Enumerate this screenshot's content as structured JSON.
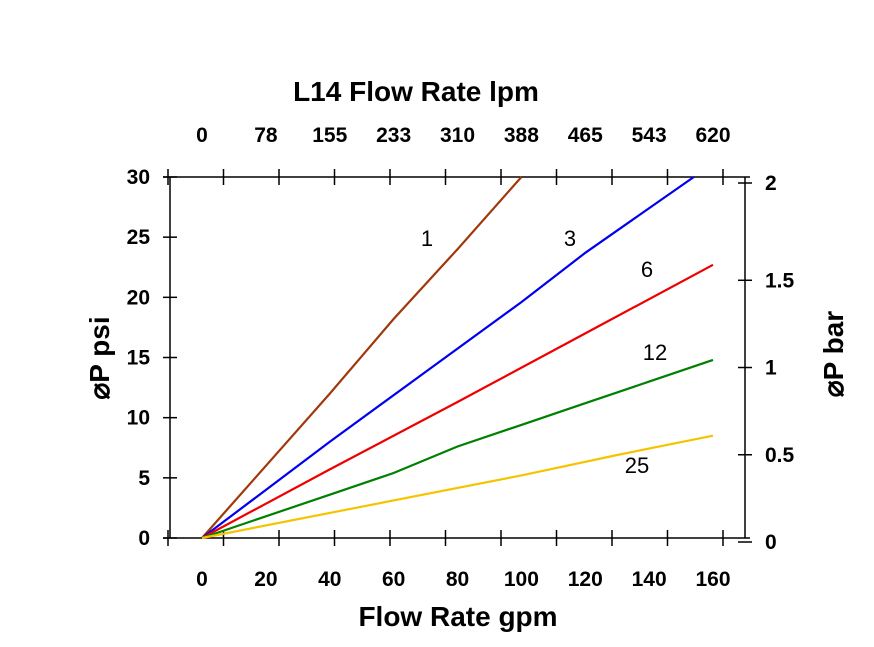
{
  "chart_data": {
    "type": "line",
    "title": "L14  Flow Rate lpm",
    "xlabel": "Flow Rate gpm",
    "ylabel": "⌀P psi",
    "y2label": "⌀P bar",
    "xlim": [
      0,
      160
    ],
    "ylim": [
      0,
      30
    ],
    "y2lim": [
      0,
      2
    ],
    "grid": false,
    "x_ticks": [
      "0",
      "20",
      "40",
      "60",
      "80",
      "100",
      "120",
      "140",
      "160"
    ],
    "x_top_ticks": [
      "0",
      "78",
      "155",
      "233",
      "310",
      "388",
      "465",
      "543",
      "620"
    ],
    "y_ticks": [
      "0",
      "5",
      "10",
      "15",
      "20",
      "25",
      "30"
    ],
    "y2_ticks": [
      {
        "label": "0",
        "value": 0
      },
      {
        "label": "0.5",
        "value": 0.5
      },
      {
        "label": "1",
        "value": 1
      },
      {
        "label": "1.5",
        "value": 1.5
      },
      {
        "label": "2",
        "value": 2
      }
    ],
    "series": [
      {
        "name": "1",
        "color": "#a0380a",
        "points": [
          [
            0,
            0
          ],
          [
            20,
            6
          ],
          [
            40,
            12
          ],
          [
            60,
            18.2
          ],
          [
            80,
            24
          ],
          [
            100,
            30
          ]
        ]
      },
      {
        "name": "3",
        "color": "#0000ee",
        "points": [
          [
            0,
            0
          ],
          [
            40,
            8
          ],
          [
            70,
            13.8
          ],
          [
            100,
            19.6
          ],
          [
            120,
            23.7
          ],
          [
            154,
            30
          ]
        ]
      },
      {
        "name": "6",
        "color": "#ee0000",
        "points": [
          [
            0,
            0
          ],
          [
            40,
            5.7
          ],
          [
            80,
            11.3
          ],
          [
            120,
            17
          ],
          [
            160,
            22.7
          ]
        ]
      },
      {
        "name": "12",
        "color": "#008000",
        "points": [
          [
            0,
            0
          ],
          [
            20,
            1.8
          ],
          [
            40,
            3.6
          ],
          [
            60,
            5.4
          ],
          [
            80,
            7.6
          ],
          [
            100,
            9.4
          ],
          [
            120,
            11.2
          ],
          [
            140,
            13
          ],
          [
            160,
            14.8
          ]
        ]
      },
      {
        "name": "25",
        "color": "#f5c400",
        "points": [
          [
            0,
            0
          ],
          [
            50,
            2.6
          ],
          [
            100,
            5.2
          ],
          [
            130,
            6.9
          ],
          [
            160,
            8.5
          ]
        ]
      }
    ]
  }
}
